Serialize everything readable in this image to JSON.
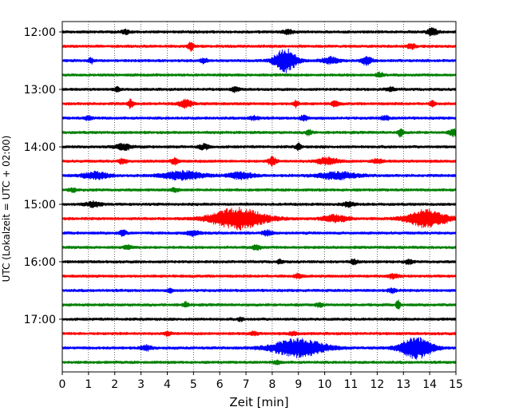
{
  "chart_data": {
    "type": "line",
    "title": "",
    "xlabel": "Zeit  [min]",
    "ylabel": "UTC (Lokalzeit = UTC + 02:00)",
    "xlim": [
      0,
      15
    ],
    "x_ticks": [
      "0",
      "1",
      "2",
      "3",
      "4",
      "5",
      "6",
      "7",
      "8",
      "9",
      "10",
      "11",
      "12",
      "13",
      "14",
      "15"
    ],
    "y_tick_labels": [
      "12:00",
      "13:00",
      "14:00",
      "15:00",
      "16:00",
      "17:00"
    ],
    "grid": {
      "x": true,
      "style": "dotted"
    },
    "color_cycle": [
      "#000000",
      "#ff0000",
      "#0000ff",
      "#008000"
    ],
    "traces": [
      {
        "start": "12:00",
        "color": "#000000",
        "events": [
          {
            "t": 2.4,
            "amp": 2.5,
            "dur": 0.3
          },
          {
            "t": 8.6,
            "amp": 2.5,
            "dur": 0.4
          },
          {
            "t": 14.1,
            "amp": 4.5,
            "dur": 0.4
          }
        ]
      },
      {
        "start": "12:15",
        "color": "#ff0000",
        "events": [
          {
            "t": 4.9,
            "amp": 5,
            "dur": 0.2
          },
          {
            "t": 13.3,
            "amp": 3,
            "dur": 0.3
          }
        ]
      },
      {
        "start": "12:30",
        "color": "#0000ff",
        "events": [
          {
            "t": 1.1,
            "amp": 3,
            "dur": 0.2
          },
          {
            "t": 5.4,
            "amp": 2.5,
            "dur": 0.3
          },
          {
            "t": 8.5,
            "amp": 15,
            "dur": 0.8
          },
          {
            "t": 10.2,
            "amp": 4,
            "dur": 0.6
          },
          {
            "t": 11.6,
            "amp": 5,
            "dur": 0.4
          }
        ]
      },
      {
        "start": "12:45",
        "color": "#008000",
        "events": [
          {
            "t": 12.1,
            "amp": 2.5,
            "dur": 0.3
          }
        ]
      },
      {
        "start": "13:00",
        "color": "#000000",
        "events": [
          {
            "t": 2.1,
            "amp": 2.5,
            "dur": 0.2
          },
          {
            "t": 6.6,
            "amp": 2.5,
            "dur": 0.3
          },
          {
            "t": 12.5,
            "amp": 2.5,
            "dur": 0.3
          }
        ]
      },
      {
        "start": "13:15",
        "color": "#ff0000",
        "events": [
          {
            "t": 2.6,
            "amp": 5,
            "dur": 0.2
          },
          {
            "t": 4.7,
            "amp": 5,
            "dur": 0.5
          },
          {
            "t": 8.9,
            "amp": 4,
            "dur": 0.2
          },
          {
            "t": 10.4,
            "amp": 3,
            "dur": 0.3
          },
          {
            "t": 14.1,
            "amp": 3,
            "dur": 0.2
          }
        ]
      },
      {
        "start": "13:30",
        "color": "#0000ff",
        "events": [
          {
            "t": 1.0,
            "amp": 2,
            "dur": 0.3
          },
          {
            "t": 7.3,
            "amp": 2,
            "dur": 0.4
          },
          {
            "t": 9.2,
            "amp": 3,
            "dur": 0.3
          },
          {
            "t": 12.3,
            "amp": 2.5,
            "dur": 0.3
          }
        ]
      },
      {
        "start": "13:45",
        "color": "#008000",
        "events": [
          {
            "t": 9.4,
            "amp": 4,
            "dur": 0.2
          },
          {
            "t": 12.9,
            "amp": 5,
            "dur": 0.2
          },
          {
            "t": 14.9,
            "amp": 4,
            "dur": 0.3
          }
        ]
      },
      {
        "start": "14:00",
        "color": "#000000",
        "events": [
          {
            "t": 2.3,
            "amp": 4,
            "dur": 0.6
          },
          {
            "t": 5.4,
            "amp": 3,
            "dur": 0.4
          },
          {
            "t": 9.0,
            "amp": 4,
            "dur": 0.2
          }
        ]
      },
      {
        "start": "14:15",
        "color": "#ff0000",
        "events": [
          {
            "t": 2.3,
            "amp": 3,
            "dur": 0.3
          },
          {
            "t": 4.3,
            "amp": 4,
            "dur": 0.3
          },
          {
            "t": 8.0,
            "amp": 5,
            "dur": 0.3
          },
          {
            "t": 10.1,
            "amp": 4,
            "dur": 0.8
          },
          {
            "t": 12.0,
            "amp": 2.5,
            "dur": 0.4
          }
        ]
      },
      {
        "start": "14:30",
        "color": "#0000ff",
        "events": [
          {
            "t": 1.3,
            "amp": 4,
            "dur": 1.0
          },
          {
            "t": 4.6,
            "amp": 5,
            "dur": 1.5
          },
          {
            "t": 6.8,
            "amp": 4,
            "dur": 1.0
          },
          {
            "t": 10.5,
            "amp": 4,
            "dur": 1.5
          }
        ]
      },
      {
        "start": "14:45",
        "color": "#008000",
        "events": [
          {
            "t": 0.4,
            "amp": 2,
            "dur": 0.3
          },
          {
            "t": 4.3,
            "amp": 2,
            "dur": 0.3
          }
        ]
      },
      {
        "start": "15:00",
        "color": "#000000",
        "events": [
          {
            "t": 1.2,
            "amp": 3,
            "dur": 0.6
          },
          {
            "t": 10.9,
            "amp": 3,
            "dur": 0.4
          }
        ]
      },
      {
        "start": "15:15",
        "color": "#ff0000",
        "events": [
          {
            "t": 6.7,
            "amp": 13,
            "dur": 2.0
          },
          {
            "t": 10.4,
            "amp": 4,
            "dur": 1.0
          },
          {
            "t": 13.9,
            "amp": 11,
            "dur": 1.5
          }
        ]
      },
      {
        "start": "15:30",
        "color": "#0000ff",
        "events": [
          {
            "t": 2.3,
            "amp": 3,
            "dur": 0.3
          },
          {
            "t": 5.0,
            "amp": 3,
            "dur": 0.5
          },
          {
            "t": 7.8,
            "amp": 3,
            "dur": 0.4
          }
        ]
      },
      {
        "start": "15:45",
        "color": "#008000",
        "events": [
          {
            "t": 2.5,
            "amp": 2,
            "dur": 0.3
          },
          {
            "t": 7.4,
            "amp": 3,
            "dur": 0.3
          }
        ]
      },
      {
        "start": "16:00",
        "color": "#000000",
        "events": [
          {
            "t": 8.3,
            "amp": 2.5,
            "dur": 0.2
          },
          {
            "t": 11.1,
            "amp": 2.5,
            "dur": 0.3
          },
          {
            "t": 13.2,
            "amp": 2.5,
            "dur": 0.3
          }
        ]
      },
      {
        "start": "16:15",
        "color": "#ff0000",
        "events": [
          {
            "t": 9.0,
            "amp": 2.5,
            "dur": 0.3
          },
          {
            "t": 12.6,
            "amp": 2.5,
            "dur": 0.4
          }
        ]
      },
      {
        "start": "16:30",
        "color": "#0000ff",
        "events": [
          {
            "t": 4.1,
            "amp": 2,
            "dur": 0.2
          },
          {
            "t": 12.6,
            "amp": 2.5,
            "dur": 0.3
          }
        ]
      },
      {
        "start": "16:45",
        "color": "#008000",
        "events": [
          {
            "t": 4.7,
            "amp": 3,
            "dur": 0.2
          },
          {
            "t": 9.8,
            "amp": 2,
            "dur": 0.3
          },
          {
            "t": 12.8,
            "amp": 6,
            "dur": 0.15
          }
        ]
      },
      {
        "start": "17:00",
        "color": "#000000",
        "events": [
          {
            "t": 6.8,
            "amp": 2,
            "dur": 0.2
          }
        ]
      },
      {
        "start": "17:15",
        "color": "#ff0000",
        "events": [
          {
            "t": 4.0,
            "amp": 2,
            "dur": 0.3
          },
          {
            "t": 7.3,
            "amp": 2,
            "dur": 0.3
          },
          {
            "t": 8.8,
            "amp": 2,
            "dur": 0.3
          }
        ]
      },
      {
        "start": "17:30",
        "color": "#0000ff",
        "events": [
          {
            "t": 3.2,
            "amp": 3,
            "dur": 0.4
          },
          {
            "t": 9.0,
            "amp": 11,
            "dur": 2.0
          },
          {
            "t": 13.5,
            "amp": 13,
            "dur": 1.2
          }
        ]
      },
      {
        "start": "17:45",
        "color": "#008000",
        "events": [
          {
            "t": 8.2,
            "amp": 2,
            "dur": 0.3
          }
        ]
      }
    ]
  }
}
